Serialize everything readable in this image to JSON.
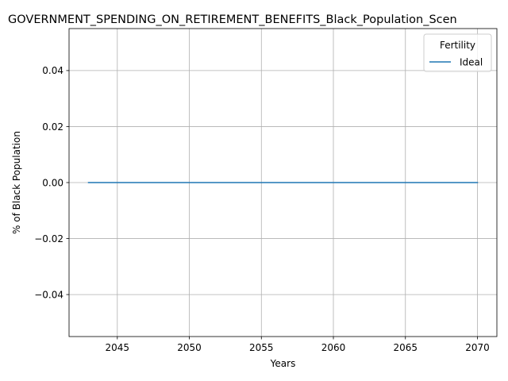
{
  "chart_data": {
    "type": "line",
    "title": "GOVERNMENT_SPENDING_ON_RETIREMENT_BENEFITS_Black_Population_Scen",
    "xlabel": "Years",
    "ylabel": "% of Black Population",
    "xlim": [
      2041.65,
      2071.35
    ],
    "ylim": [
      -0.055,
      0.055
    ],
    "x_ticks": [
      2045,
      2050,
      2055,
      2060,
      2065,
      2070
    ],
    "x_tick_labels": [
      "2045",
      "2050",
      "2055",
      "2060",
      "2065",
      "2070"
    ],
    "y_ticks": [
      -0.04,
      -0.02,
      0.0,
      0.02,
      0.04
    ],
    "y_tick_labels": [
      "−0.04",
      "−0.02",
      "0.00",
      "0.02",
      "0.04"
    ],
    "grid": true,
    "legend": {
      "title": "Fertility",
      "position": "top-right"
    },
    "series": [
      {
        "name": "Ideal",
        "color": "#1f77b4",
        "x": [
          2043,
          2044,
          2045,
          2046,
          2047,
          2048,
          2049,
          2050,
          2051,
          2052,
          2053,
          2054,
          2055,
          2056,
          2057,
          2058,
          2059,
          2060,
          2061,
          2062,
          2063,
          2064,
          2065,
          2066,
          2067,
          2068,
          2069,
          2070
        ],
        "values": [
          0,
          0,
          0,
          0,
          0,
          0,
          0,
          0,
          0,
          0,
          0,
          0,
          0,
          0,
          0,
          0,
          0,
          0,
          0,
          0,
          0,
          0,
          0,
          0,
          0,
          0,
          0,
          0
        ]
      }
    ]
  }
}
